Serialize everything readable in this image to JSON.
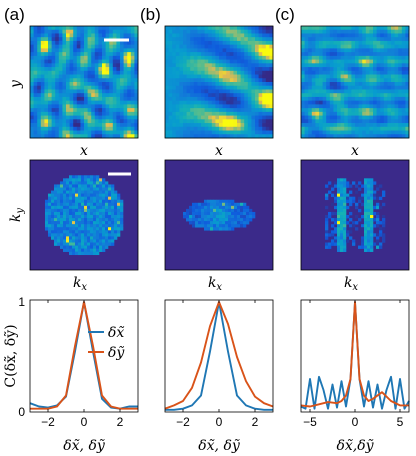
{
  "panel_labels": [
    "(a)",
    "(b)",
    "(c)"
  ],
  "row1": {
    "xlabel": "x",
    "ylabel": "y"
  },
  "row2": {
    "xlabel": "k_x",
    "ylabel": "k_y",
    "xlabel_sub": "x",
    "ylabel_sub": "y",
    "xlabel_base": "k",
    "ylabel_base": "k"
  },
  "row3": {
    "ylabel": "C(δx̃, δỹ)",
    "xlabel_ab": "δx̃, δỹ",
    "xlabel_c": "δx̃,δỹ"
  },
  "colors": {
    "deep_blue": "#3b2a8a",
    "series_x": "#1f77b4",
    "series_y": "#d95319"
  },
  "chart_data": [
    {
      "type": "line",
      "panel": "a",
      "xlim": [
        -3,
        3
      ],
      "ylim": [
        0,
        1
      ],
      "xticks": [
        -2,
        0,
        2
      ],
      "yticks": [
        0,
        1
      ],
      "legend": {
        "placement": "top-right",
        "entries": [
          "δx̃",
          "δỹ"
        ]
      },
      "series": [
        {
          "name": "δx̃",
          "color": "#1f77b4",
          "x": [
            -3,
            -2.5,
            -2,
            -1.5,
            -1,
            -0.5,
            0,
            0.5,
            1,
            1.5,
            2,
            2.5,
            3
          ],
          "y": [
            0.08,
            0.05,
            0.04,
            0.06,
            0.14,
            0.55,
            1.0,
            0.55,
            0.12,
            0.04,
            0.03,
            0.05,
            0.05
          ]
        },
        {
          "name": "δỹ",
          "color": "#d95319",
          "x": [
            -3,
            -2.5,
            -2,
            -1.5,
            -1,
            -0.5,
            0,
            0.5,
            1,
            1.5,
            2,
            2.5,
            3
          ],
          "y": [
            0.03,
            0.03,
            0.03,
            0.05,
            0.15,
            0.6,
            1.0,
            0.6,
            0.15,
            0.05,
            0.03,
            0.03,
            0.03
          ]
        }
      ]
    },
    {
      "type": "line",
      "panel": "b",
      "xlim": [
        -3,
        3
      ],
      "ylim": [
        0,
        1
      ],
      "xticks": [
        -2,
        0,
        2
      ],
      "series": [
        {
          "name": "δx̃",
          "color": "#1f77b4",
          "x": [
            -3,
            -2.5,
            -2,
            -1.5,
            -1,
            -0.5,
            0,
            0.5,
            1,
            1.5,
            2,
            2.5,
            3
          ],
          "y": [
            0.02,
            0.02,
            0.03,
            0.06,
            0.15,
            0.55,
            1.0,
            0.55,
            0.15,
            0.06,
            0.03,
            0.02,
            0.02
          ]
        },
        {
          "name": "δỹ",
          "color": "#d95319",
          "x": [
            -3,
            -2.5,
            -2,
            -1.5,
            -1,
            -0.5,
            0,
            0.5,
            1,
            1.5,
            2,
            2.5,
            3
          ],
          "y": [
            0.03,
            0.06,
            0.1,
            0.22,
            0.45,
            0.78,
            1.0,
            0.8,
            0.5,
            0.28,
            0.14,
            0.08,
            0.05
          ]
        }
      ]
    },
    {
      "type": "line",
      "panel": "c",
      "xlim": [
        -6,
        6
      ],
      "ylim": [
        0,
        1
      ],
      "xticks": [
        -5,
        0,
        5
      ],
      "series": [
        {
          "name": "δx̃",
          "color": "#1f77b4",
          "x": [
            -6,
            -5.5,
            -5,
            -4.5,
            -4,
            -3.5,
            -3,
            -2.5,
            -2,
            -1.5,
            -1,
            -0.5,
            0,
            0.5,
            1,
            1.5,
            2,
            2.5,
            3,
            3.5,
            4,
            4.5,
            5,
            5.5,
            6
          ],
          "y": [
            0.05,
            0.03,
            0.3,
            0.03,
            0.32,
            0.2,
            0.03,
            0.25,
            0.04,
            0.28,
            0.05,
            0.3,
            1.0,
            0.3,
            0.05,
            0.28,
            0.04,
            0.25,
            0.03,
            0.2,
            0.32,
            0.03,
            0.3,
            0.03,
            0.1
          ]
        },
        {
          "name": "δỹ",
          "color": "#d95319",
          "x": [
            -6,
            -5,
            -4,
            -3,
            -2,
            -1.5,
            -1,
            -0.5,
            0,
            0.5,
            1,
            1.5,
            2,
            3,
            4,
            5,
            6
          ],
          "y": [
            0.06,
            0.05,
            0.07,
            0.09,
            0.08,
            0.1,
            0.15,
            0.3,
            1.0,
            0.3,
            0.15,
            0.1,
            0.12,
            0.18,
            0.1,
            0.06,
            0.06
          ]
        }
      ]
    }
  ]
}
